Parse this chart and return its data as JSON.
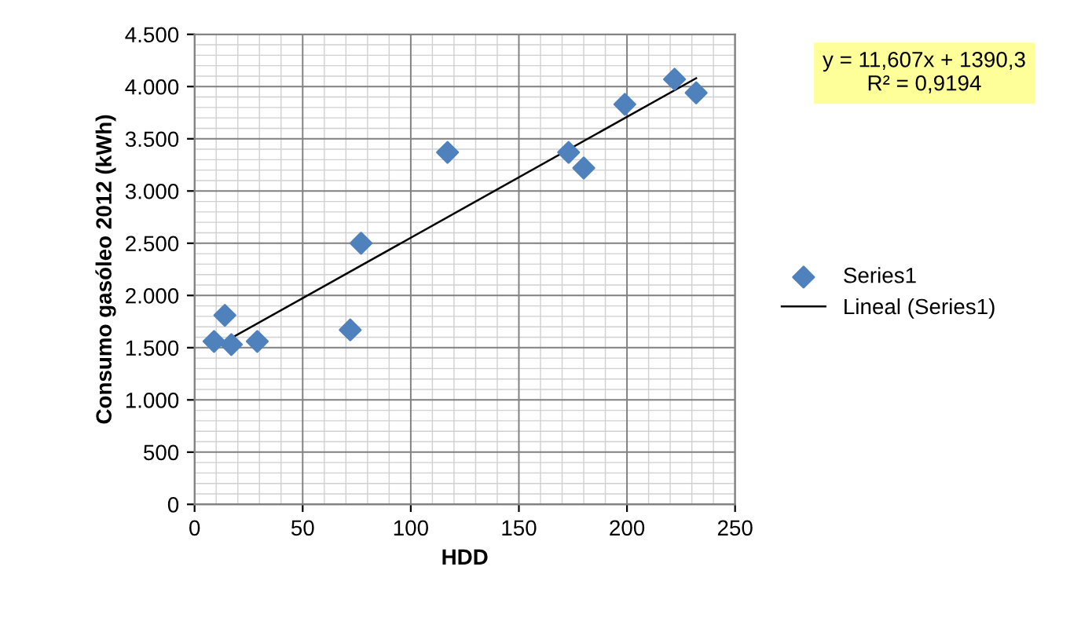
{
  "chart_data": {
    "type": "scatter",
    "xlabel": "HDD",
    "ylabel": "Consumo gasóleo 2012 (kWh)",
    "series": [
      {
        "name": "Series1",
        "color": "#4f81bd",
        "marker": "diamond",
        "x": [
          9,
          14,
          17,
          29,
          72,
          77,
          117,
          173,
          180,
          199,
          222,
          232
        ],
        "values": [
          1560,
          1810,
          1530,
          1560,
          1670,
          2500,
          3370,
          3370,
          3220,
          3830,
          4070,
          3940
        ]
      },
      {
        "name": "Lineal (Series1)",
        "type": "line",
        "color": "#000000",
        "marker": "none",
        "line_style": "solid",
        "x": [
          9,
          232
        ],
        "values": [
          1500,
          4080
        ]
      }
    ],
    "xlim": [
      0,
      250
    ],
    "xticks": [
      0,
      50,
      100,
      150,
      200,
      250
    ],
    "ylim": [
      0,
      4500
    ],
    "yticks": [
      0,
      500,
      {
        "value": 1000,
        "label": "1.000"
      },
      {
        "value": 1500,
        "label": "1.500"
      },
      {
        "value": 2000,
        "label": "2.000"
      },
      {
        "value": 2500,
        "label": "2.500"
      },
      {
        "value": 3000,
        "label": "3.000"
      },
      {
        "value": 3500,
        "label": "3.500"
      },
      {
        "value": 4000,
        "label": "4.000"
      },
      {
        "value": 4500,
        "label": "4.500"
      }
    ],
    "grid": true,
    "legend": "right",
    "annotations": [
      "y = 11,607x + 1390,3\nR² = 0,9194"
    ]
  }
}
